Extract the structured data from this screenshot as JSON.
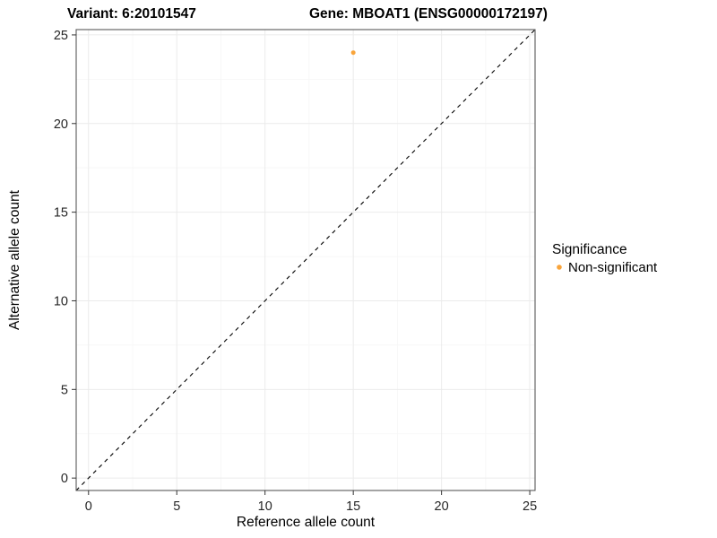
{
  "chart_data": {
    "type": "scatter",
    "title_variant": "Variant: 6:20101547",
    "title_gene": "Gene: MBOAT1 (ENSG00000172197)",
    "xlabel": "Reference allele count",
    "ylabel": "Alternative allele count",
    "x_ticks": [
      0,
      5,
      10,
      15,
      20,
      25
    ],
    "y_ticks": [
      0,
      5,
      10,
      15,
      20,
      25
    ],
    "minor_ticks": [
      2.5,
      7.5,
      12.5,
      17.5,
      22.5
    ],
    "xlim": [
      -0.7,
      25.3
    ],
    "ylim": [
      -0.7,
      25.3
    ],
    "grid": true,
    "reference_line": {
      "type": "identity",
      "style": "dashed",
      "color": "#000000"
    },
    "series": [
      {
        "name": "Non-significant",
        "color": "#F9A43A",
        "points": [
          {
            "x": 15,
            "y": 24
          }
        ]
      }
    ],
    "legend": {
      "title": "Significance",
      "position": "right",
      "items": [
        {
          "label": "Non-significant",
          "color": "#F9A43A"
        }
      ]
    },
    "colors": {
      "grid_major": "#ebebeb",
      "grid_minor": "#f6f6f6",
      "panel_border": "#595959",
      "tick_mark": "#333333",
      "background": "#ffffff"
    }
  }
}
